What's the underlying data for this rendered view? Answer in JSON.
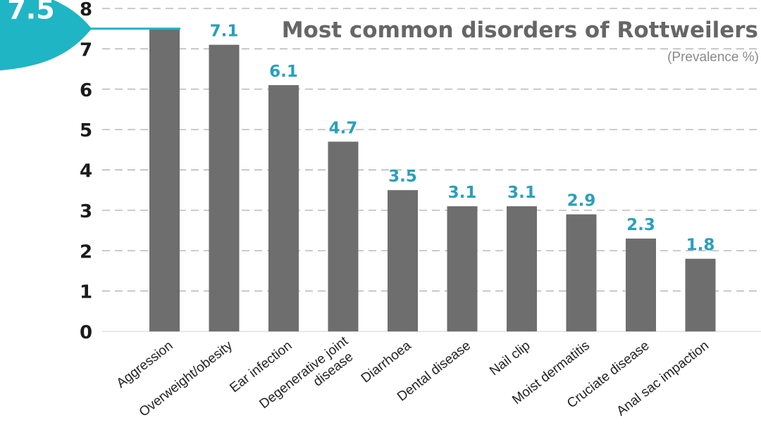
{
  "chart_data": {
    "type": "bar",
    "title": "Most common disorders of Rottweilers",
    "subtitle": "(Prevalence %)",
    "categories": [
      "Aggression",
      "Overweight/obesity",
      "Ear infection",
      "Degenerative joint disease",
      "Diarrhoea",
      "Dental disease",
      "Nail clip",
      "Moist  dermatitis",
      "Cruciate disease",
      "Anal sac impaction"
    ],
    "values": [
      7.5,
      7.1,
      6.1,
      4.7,
      3.5,
      3.1,
      3.1,
      2.9,
      2.3,
      1.8
    ],
    "value_labels": [
      "7.5",
      "7.1",
      "6.1",
      "4.7",
      "3.5",
      "3.1",
      "3.1",
      "2.9",
      "2.3",
      "1.8"
    ],
    "highlight_label": "7.5",
    "yticks": [
      "0",
      "1",
      "2",
      "3",
      "4",
      "5",
      "6",
      "7",
      "8"
    ],
    "ylim": [
      0,
      8
    ],
    "grid": true,
    "colors": {
      "bar": "#6e6e6e",
      "accent": "#1fb5c4",
      "value_label": "#2a9fbb",
      "grid": "#9a9a9a"
    }
  }
}
